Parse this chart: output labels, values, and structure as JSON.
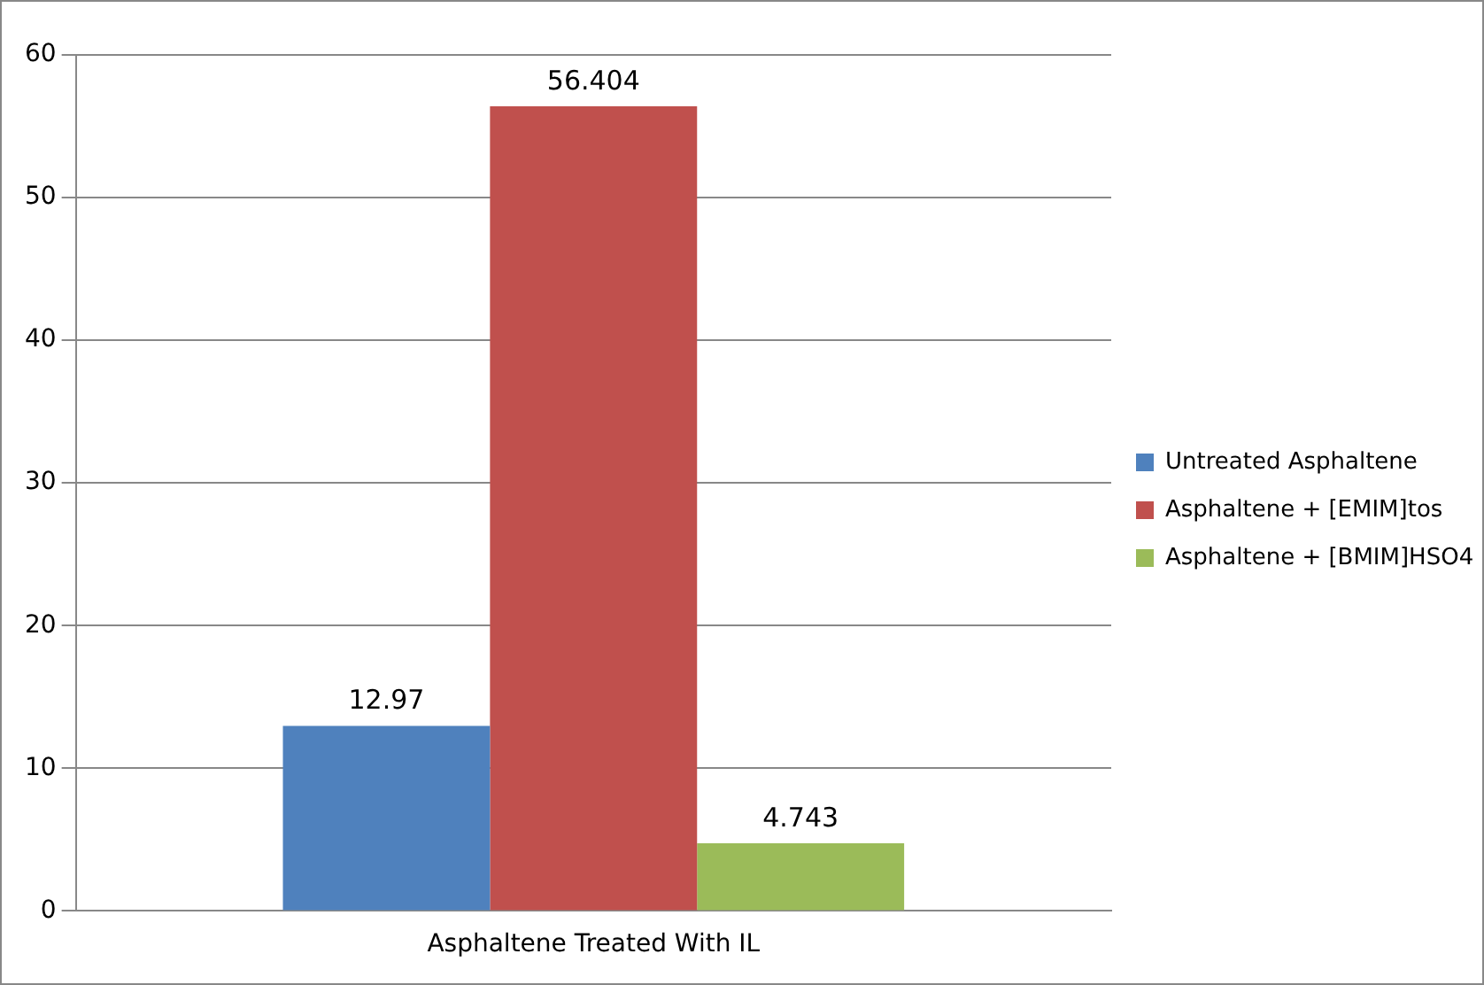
{
  "chart_data": {
    "type": "bar",
    "categories": [
      "Asphaltene Treated With IL"
    ],
    "series": [
      {
        "name": "Untreated Asphaltene",
        "color": "#4f81bd",
        "values": [
          12.97
        ]
      },
      {
        "name": "Asphaltene + [EMIM]tos",
        "color": "#c0504d",
        "values": [
          56.404
        ]
      },
      {
        "name": "Asphaltene + [BMIM]HSO4",
        "color": "#9bbb59",
        "values": [
          4.743
        ]
      }
    ],
    "ylim": [
      0,
      60
    ],
    "yticks": [
      0,
      10,
      20,
      30,
      40,
      50,
      60
    ],
    "grid": "y",
    "legend": "right",
    "data_labels": true
  }
}
